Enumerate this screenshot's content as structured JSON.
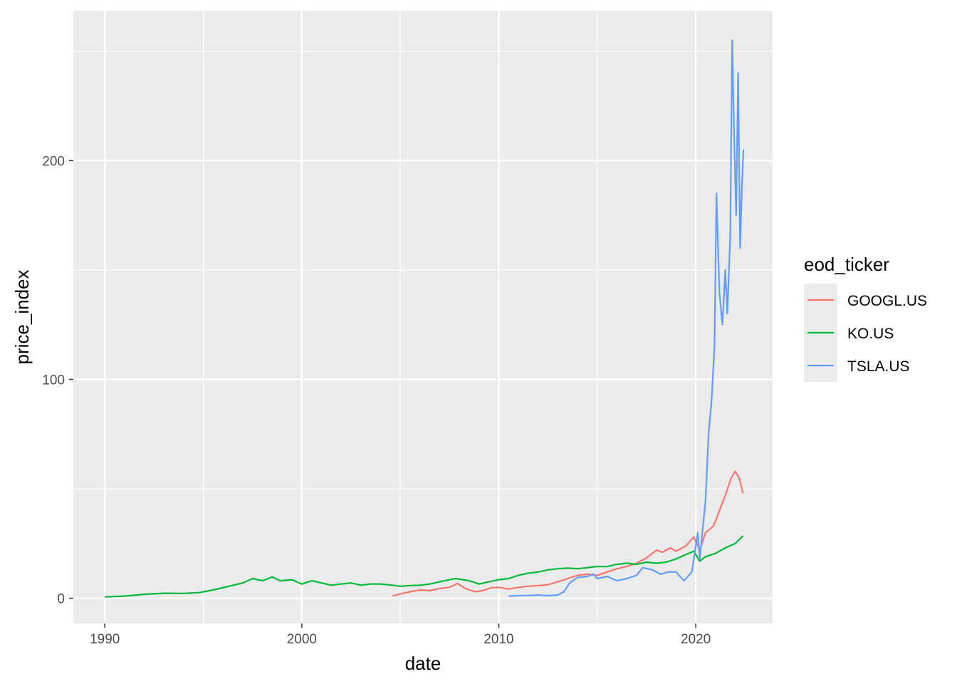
{
  "chart_data": {
    "type": "line",
    "xlabel": "date",
    "ylabel": "price_index",
    "xlim": [
      1988.4,
      2023.9
    ],
    "ylim": [
      -11.5,
      268.5
    ],
    "x_ticks": [
      1990,
      2000,
      2010,
      2020
    ],
    "x_tick_labels": [
      "1990",
      "2000",
      "2010",
      "2020"
    ],
    "y_ticks": [
      0,
      100,
      200
    ],
    "y_tick_labels": [
      "0",
      "100",
      "200"
    ],
    "grid": true,
    "legend": {
      "title": "eod_ticker",
      "position": "right"
    },
    "series": [
      {
        "name": "GOOGL.US",
        "color": "#F8766D",
        "points": [
          [
            2004.6,
            1.0
          ],
          [
            2005.0,
            2.0
          ],
          [
            2005.5,
            3.0
          ],
          [
            2006.0,
            3.8
          ],
          [
            2006.5,
            3.5
          ],
          [
            2007.0,
            4.5
          ],
          [
            2007.5,
            5.0
          ],
          [
            2007.9,
            6.8
          ],
          [
            2008.3,
            4.5
          ],
          [
            2008.8,
            3.0
          ],
          [
            2009.2,
            3.5
          ],
          [
            2009.6,
            4.8
          ],
          [
            2010.0,
            5.0
          ],
          [
            2010.5,
            4.2
          ],
          [
            2011.0,
            5.0
          ],
          [
            2011.5,
            5.5
          ],
          [
            2012.0,
            5.8
          ],
          [
            2012.5,
            6.2
          ],
          [
            2013.0,
            7.5
          ],
          [
            2013.5,
            9.0
          ],
          [
            2014.0,
            10.5
          ],
          [
            2014.5,
            11.0
          ],
          [
            2015.0,
            10.5
          ],
          [
            2015.5,
            12.0
          ],
          [
            2016.0,
            13.5
          ],
          [
            2016.5,
            14.5
          ],
          [
            2017.0,
            16.0
          ],
          [
            2017.5,
            18.5
          ],
          [
            2018.0,
            22.0
          ],
          [
            2018.3,
            21.0
          ],
          [
            2018.7,
            23.0
          ],
          [
            2019.0,
            21.5
          ],
          [
            2019.5,
            24.0
          ],
          [
            2019.9,
            28.0
          ],
          [
            2020.2,
            22.0
          ],
          [
            2020.5,
            30.0
          ],
          [
            2020.9,
            33.0
          ],
          [
            2021.2,
            40.0
          ],
          [
            2021.5,
            47.0
          ],
          [
            2021.8,
            55.0
          ],
          [
            2022.0,
            58.0
          ],
          [
            2022.2,
            55.0
          ],
          [
            2022.4,
            48.0
          ]
        ]
      },
      {
        "name": "KO.US",
        "color": "#00BA38",
        "points": [
          [
            1990.0,
            0.6
          ],
          [
            1991.0,
            1.0
          ],
          [
            1992.0,
            1.8
          ],
          [
            1993.0,
            2.3
          ],
          [
            1994.0,
            2.2
          ],
          [
            1994.8,
            2.6
          ],
          [
            1995.5,
            3.8
          ],
          [
            1996.3,
            5.5
          ],
          [
            1997.0,
            7.0
          ],
          [
            1997.5,
            9.0
          ],
          [
            1998.0,
            8.0
          ],
          [
            1998.5,
            9.8
          ],
          [
            1998.9,
            8.0
          ],
          [
            1999.5,
            8.5
          ],
          [
            2000.0,
            6.5
          ],
          [
            2000.5,
            8.0
          ],
          [
            2001.0,
            7.0
          ],
          [
            2001.5,
            6.0
          ],
          [
            2002.0,
            6.5
          ],
          [
            2002.5,
            7.0
          ],
          [
            2003.0,
            6.0
          ],
          [
            2003.5,
            6.5
          ],
          [
            2004.0,
            6.5
          ],
          [
            2004.6,
            6.0
          ],
          [
            2005.0,
            5.5
          ],
          [
            2005.5,
            5.8
          ],
          [
            2006.0,
            6.0
          ],
          [
            2006.5,
            6.5
          ],
          [
            2007.0,
            7.5
          ],
          [
            2007.8,
            9.0
          ],
          [
            2008.5,
            8.0
          ],
          [
            2009.0,
            6.5
          ],
          [
            2009.5,
            7.5
          ],
          [
            2010.0,
            8.5
          ],
          [
            2010.5,
            9.0
          ],
          [
            2011.0,
            10.5
          ],
          [
            2011.5,
            11.5
          ],
          [
            2012.0,
            12.0
          ],
          [
            2012.5,
            13.0
          ],
          [
            2013.0,
            13.5
          ],
          [
            2013.5,
            13.8
          ],
          [
            2014.0,
            13.5
          ],
          [
            2014.5,
            14.0
          ],
          [
            2015.0,
            14.5
          ],
          [
            2015.5,
            14.5
          ],
          [
            2016.0,
            15.5
          ],
          [
            2016.5,
            16.0
          ],
          [
            2017.0,
            15.5
          ],
          [
            2017.5,
            16.5
          ],
          [
            2018.0,
            16.0
          ],
          [
            2018.5,
            16.5
          ],
          [
            2019.0,
            18.0
          ],
          [
            2019.5,
            20.0
          ],
          [
            2019.9,
            21.5
          ],
          [
            2020.2,
            17.0
          ],
          [
            2020.5,
            19.0
          ],
          [
            2021.0,
            20.5
          ],
          [
            2021.5,
            23.0
          ],
          [
            2022.0,
            25.0
          ],
          [
            2022.4,
            28.5
          ]
        ]
      },
      {
        "name": "TSLA.US",
        "color": "#619CFF",
        "points": [
          [
            2010.5,
            1.0
          ],
          [
            2011.0,
            1.2
          ],
          [
            2011.5,
            1.3
          ],
          [
            2012.0,
            1.5
          ],
          [
            2012.5,
            1.2
          ],
          [
            2013.0,
            1.5
          ],
          [
            2013.3,
            3.0
          ],
          [
            2013.6,
            7.0
          ],
          [
            2014.0,
            9.5
          ],
          [
            2014.5,
            10.0
          ],
          [
            2014.8,
            11.0
          ],
          [
            2015.0,
            9.0
          ],
          [
            2015.5,
            10.0
          ],
          [
            2016.0,
            8.0
          ],
          [
            2016.5,
            9.0
          ],
          [
            2017.0,
            10.5
          ],
          [
            2017.3,
            14.0
          ],
          [
            2017.8,
            13.0
          ],
          [
            2018.2,
            11.0
          ],
          [
            2018.6,
            12.0
          ],
          [
            2019.0,
            12.0
          ],
          [
            2019.4,
            8.0
          ],
          [
            2019.8,
            12.0
          ],
          [
            2020.1,
            30.0
          ],
          [
            2020.2,
            18.0
          ],
          [
            2020.5,
            45.0
          ],
          [
            2020.65,
            75.0
          ],
          [
            2020.8,
            90.0
          ],
          [
            2020.95,
            115.0
          ],
          [
            2021.05,
            185.0
          ],
          [
            2021.2,
            140.0
          ],
          [
            2021.35,
            125.0
          ],
          [
            2021.5,
            150.0
          ],
          [
            2021.6,
            130.0
          ],
          [
            2021.75,
            165.0
          ],
          [
            2021.85,
            255.0
          ],
          [
            2021.95,
            210.0
          ],
          [
            2022.05,
            175.0
          ],
          [
            2022.15,
            240.0
          ],
          [
            2022.25,
            160.0
          ],
          [
            2022.35,
            190.0
          ],
          [
            2022.42,
            205.0
          ]
        ]
      }
    ]
  }
}
